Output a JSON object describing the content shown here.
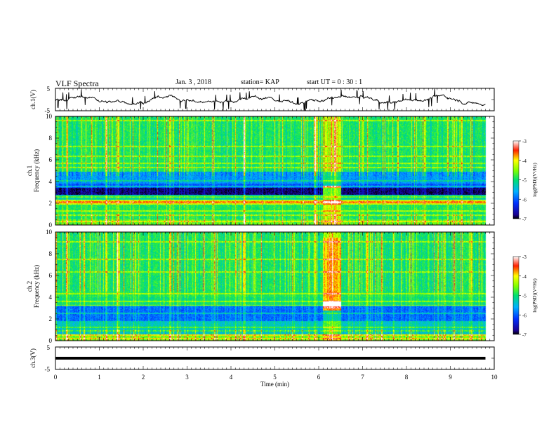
{
  "header": {
    "title": "VLF Spectra",
    "date": "Jan. 3 , 2018",
    "station": "station= KAP",
    "start": "start UT = 0 : 30 : 1"
  },
  "chart_data": [
    {
      "type": "line",
      "ylabel": "ch.1(V)",
      "xlim": [
        0,
        10
      ],
      "ylim": [
        -5,
        5
      ],
      "yticks": [
        "5",
        "-5"
      ],
      "description_values": {
        "mean": 0.0,
        "range": [
          -4.5,
          5
        ]
      }
    },
    {
      "type": "heatmap",
      "ylabel": "ch.1\nFrequency (kHz)",
      "xlim": [
        0,
        10
      ],
      "ylim": [
        0,
        10
      ],
      "yticks": [
        "0",
        "2",
        "4",
        "6",
        "8",
        "10"
      ],
      "colorbar": {
        "label": "log(PSD)(V²/Hz)",
        "range": [
          -7,
          -3
        ],
        "ticks": [
          "-3",
          "-4",
          "-5",
          "-6",
          "-7"
        ]
      },
      "data_end_min": 9.8,
      "bright_interval_min": [
        6.1,
        6.5
      ],
      "band_levels": [
        {
          "fmin": 0,
          "fmax": 0.5,
          "logpsd": -4.6
        },
        {
          "fmin": 0.5,
          "fmax": 1.9,
          "logpsd": -4.9
        },
        {
          "fmin": 1.9,
          "fmax": 2.3,
          "logpsd": -4.2
        },
        {
          "fmin": 2.3,
          "fmax": 2.8,
          "logpsd": -5.2
        },
        {
          "fmin": 2.8,
          "fmax": 3.4,
          "logpsd": -6.8
        },
        {
          "fmin": 3.4,
          "fmax": 3.8,
          "logpsd": -6.0
        },
        {
          "fmin": 3.8,
          "fmax": 4.9,
          "logpsd": -5.7
        },
        {
          "fmin": 4.9,
          "fmax": 10,
          "logpsd": -4.9
        }
      ]
    },
    {
      "type": "heatmap",
      "ylabel": "ch.2\nFrequency (kHz)",
      "xlim": [
        0,
        10
      ],
      "ylim": [
        0,
        10
      ],
      "yticks": [
        "0",
        "2",
        "4",
        "6",
        "8",
        "10"
      ],
      "colorbar": {
        "label": "log(PSD)(V²/Hz)",
        "range": [
          -7,
          -3
        ],
        "ticks": [
          "-3",
          "-4",
          "-5",
          "-6",
          "-7"
        ]
      },
      "data_end_min": 9.8,
      "bright_interval_min": [
        6.1,
        6.5
      ],
      "band_levels": [
        {
          "fmin": 0,
          "fmax": 0.6,
          "logpsd": -4.5
        },
        {
          "fmin": 0.6,
          "fmax": 1.8,
          "logpsd": -5.3
        },
        {
          "fmin": 1.8,
          "fmax": 3.2,
          "logpsd": -5.9
        },
        {
          "fmin": 3.2,
          "fmax": 4.0,
          "logpsd": -5.0
        },
        {
          "fmin": 4.0,
          "fmax": 10,
          "logpsd": -4.9
        }
      ]
    },
    {
      "type": "line",
      "ylabel": "ch.3(V)",
      "xlabel": "Time (min)",
      "xlim": [
        0,
        10
      ],
      "ylim": [
        -5,
        5
      ],
      "xticks": [
        "0",
        "1",
        "2",
        "3",
        "4",
        "5",
        "6",
        "7",
        "8",
        "9",
        "10"
      ],
      "yticks": [
        "5",
        "-5"
      ],
      "values_constant": 0.0
    }
  ]
}
